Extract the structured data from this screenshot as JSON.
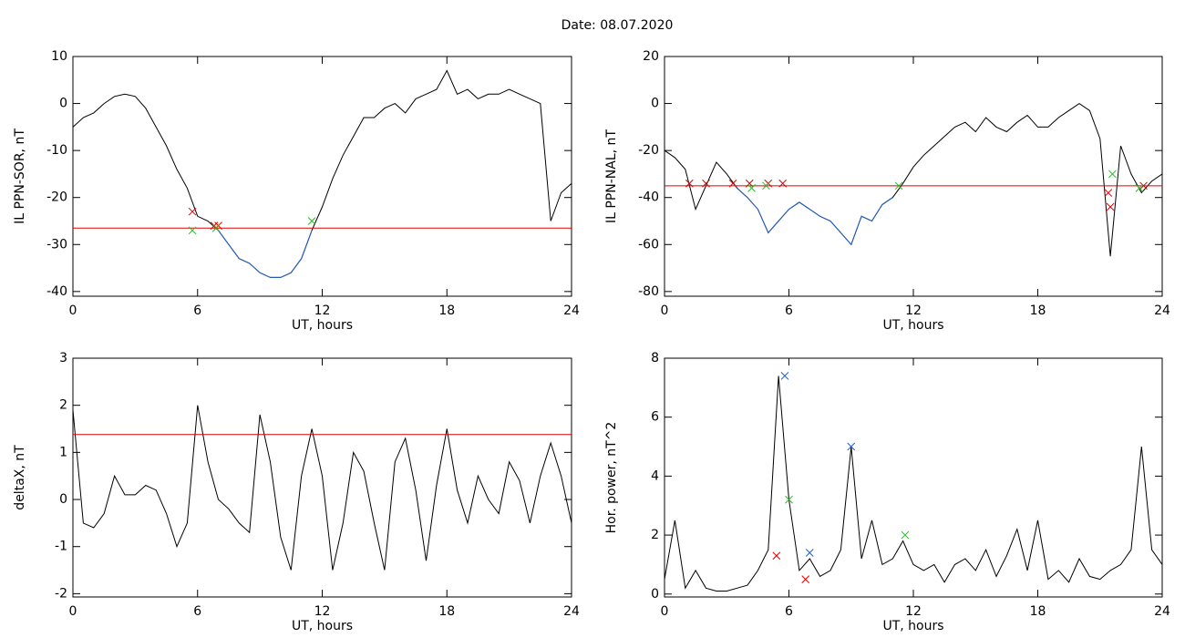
{
  "title": "Date:  08.07.2020",
  "chart_data": [
    {
      "type": "line",
      "xlabel": "UT, hours",
      "ylabel": "IL PPN-SOR, nT",
      "xlim": [
        0,
        24
      ],
      "xticks": [
        0,
        6,
        12,
        18,
        24
      ],
      "ylim": [
        -41,
        10
      ],
      "yticks": [
        -40,
        -30,
        -20,
        -10,
        0,
        10
      ],
      "x": [
        0,
        0.5,
        1,
        1.5,
        2,
        2.5,
        3,
        3.5,
        4,
        4.5,
        5,
        5.5,
        6,
        6.5,
        7,
        7.5,
        8,
        8.5,
        9,
        9.5,
        10,
        10.5,
        11,
        11.5,
        12,
        12.5,
        13,
        13.5,
        14,
        14.5,
        15,
        15.5,
        16,
        16.5,
        17,
        17.5,
        18,
        18.5,
        19,
        19.5,
        20,
        20.5,
        21,
        21.5,
        22,
        22.5,
        23,
        23.5,
        24
      ],
      "series": [
        {
          "color": "#000000",
          "values": [
            -5,
            -3,
            -2,
            0,
            1.5,
            2,
            1.5,
            -1,
            -5,
            -9,
            -14,
            -18,
            -24,
            -25,
            -27,
            -30,
            -33,
            -34,
            -36,
            -37,
            -37,
            -36,
            -33,
            -27,
            -22,
            -16,
            -11,
            -7,
            -3,
            -3,
            -1,
            0,
            -2,
            1,
            2,
            3,
            7,
            2,
            3,
            1,
            2,
            2,
            3,
            2,
            1,
            0,
            -25,
            -19,
            -17
          ]
        },
        {
          "color": "#1f5fd0",
          "values": [
            null,
            null,
            null,
            null,
            null,
            null,
            null,
            null,
            null,
            null,
            null,
            null,
            null,
            null,
            -27,
            -30,
            -33,
            -34,
            -36,
            -37,
            -37,
            -36,
            -33,
            -27,
            null,
            null,
            null,
            null,
            null,
            null,
            null,
            null,
            null,
            null,
            null,
            null,
            null,
            null,
            null,
            null,
            null,
            null,
            null,
            null,
            null,
            null,
            null,
            null,
            null
          ]
        }
      ],
      "threshold": {
        "value": -26.5,
        "color": "#e00000"
      },
      "markers": [
        {
          "color": "#e00000",
          "x": [
            5.75,
            6.8,
            7
          ],
          "values": [
            -23,
            -26,
            -26
          ]
        },
        {
          "color": "#20c020",
          "x": [
            5.75,
            6.9,
            11.5
          ],
          "values": [
            -27,
            -26.5,
            -25
          ]
        }
      ]
    },
    {
      "type": "line",
      "xlabel": "UT, hours",
      "ylabel": "IL PPN-NAL, nT",
      "xlim": [
        0,
        24
      ],
      "xticks": [
        0,
        6,
        12,
        18,
        24
      ],
      "ylim": [
        -82,
        20
      ],
      "yticks": [
        -80,
        -60,
        -40,
        -20,
        0,
        20
      ],
      "x": [
        0,
        0.5,
        1,
        1.5,
        2,
        2.5,
        3,
        3.5,
        4,
        4.5,
        5,
        5.5,
        6,
        6.5,
        7,
        7.5,
        8,
        8.5,
        9,
        9.5,
        10,
        10.5,
        11,
        11.5,
        12,
        12.5,
        13,
        13.5,
        14,
        14.5,
        15,
        15.5,
        16,
        16.5,
        17,
        17.5,
        18,
        18.5,
        19,
        19.5,
        20,
        20.5,
        21,
        21.5,
        22,
        22.5,
        23,
        23.5,
        24
      ],
      "series": [
        {
          "color": "#000000",
          "values": [
            -20,
            -23,
            -28,
            -45,
            -35,
            -25,
            -30,
            -36,
            -40,
            -45,
            -55,
            -50,
            -45,
            -42,
            -45,
            -48,
            -50,
            -55,
            -60,
            -48,
            -50,
            -43,
            -40,
            -34,
            -27,
            -22,
            -18,
            -14,
            -10,
            -8,
            -12,
            -6,
            -10,
            -12,
            -8,
            -5,
            -10,
            -10,
            -6,
            -3,
            0,
            -3,
            -15,
            -65,
            -18,
            -30,
            -38,
            -33,
            -30
          ]
        },
        {
          "color": "#1f5fd0",
          "values": [
            null,
            null,
            null,
            -45,
            null,
            null,
            null,
            -36,
            -40,
            -45,
            -55,
            -50,
            -45,
            -42,
            -45,
            -48,
            -50,
            -55,
            -60,
            -48,
            -50,
            -43,
            -40,
            null,
            null,
            null,
            null,
            null,
            null,
            null,
            null,
            null,
            null,
            null,
            null,
            null,
            null,
            null,
            null,
            null,
            null,
            null,
            null,
            -65,
            null,
            null,
            -38,
            null,
            null
          ]
        }
      ],
      "threshold": {
        "value": -35,
        "color": "#e00000"
      },
      "markers": [
        {
          "color": "#e00000",
          "x": [
            1.2,
            2,
            3.3,
            4.1,
            5,
            5.7,
            21.4,
            21.5,
            23.1
          ],
          "values": [
            -34,
            -34,
            -34,
            -34,
            -34,
            -34,
            -38,
            -44,
            -35
          ]
        },
        {
          "color": "#20c020",
          "x": [
            4.2,
            4.9,
            11.3,
            21.6,
            22.9
          ],
          "values": [
            -36,
            -35,
            -35,
            -30,
            -36
          ]
        }
      ]
    },
    {
      "type": "line",
      "xlabel": "UT, hours",
      "ylabel": "deltaX, nT",
      "xlim": [
        0,
        24
      ],
      "xticks": [
        0,
        6,
        12,
        18,
        24
      ],
      "ylim": [
        -2.07,
        3
      ],
      "yticks": [
        -2,
        -1,
        0,
        1,
        2,
        3
      ],
      "x": [
        0,
        0.5,
        1,
        1.5,
        2,
        2.5,
        3,
        3.5,
        4,
        4.5,
        5,
        5.5,
        6,
        6.5,
        7,
        7.5,
        8,
        8.5,
        9,
        9.5,
        10,
        10.5,
        11,
        11.5,
        12,
        12.5,
        13,
        13.5,
        14,
        14.5,
        15,
        15.5,
        16,
        16.5,
        17,
        17.5,
        18,
        18.5,
        19,
        19.5,
        20,
        20.5,
        21,
        21.5,
        22,
        22.5,
        23,
        23.5,
        24
      ],
      "series": [
        {
          "color": "#000000",
          "values": [
            1.9,
            -0.5,
            -0.6,
            -0.3,
            0.5,
            0.1,
            0.1,
            0.3,
            0.2,
            -0.3,
            -1,
            -0.5,
            2.0,
            0.8,
            0,
            -0.2,
            -0.5,
            -0.7,
            1.8,
            0.8,
            -0.8,
            -1.5,
            0.5,
            1.5,
            0.5,
            -1.5,
            -0.5,
            1.0,
            0.6,
            -0.5,
            -1.5,
            0.8,
            1.3,
            0.2,
            -1.3,
            0.3,
            1.5,
            0.2,
            -0.5,
            0.5,
            0,
            -0.3,
            0.8,
            0.4,
            -0.5,
            0.5,
            1.2,
            0.5,
            -0.5
          ]
        }
      ],
      "threshold": {
        "value": 1.38,
        "color": "#e00000"
      },
      "markers": []
    },
    {
      "type": "line",
      "xlabel": "UT, hours",
      "ylabel": "Hor. power, nT^2",
      "xlim": [
        0,
        24
      ],
      "xticks": [
        0,
        6,
        12,
        18,
        24
      ],
      "ylim": [
        -0.1,
        8
      ],
      "yticks": [
        0,
        2,
        4,
        6,
        8
      ],
      "x": [
        0,
        0.5,
        1,
        1.5,
        2,
        2.5,
        3,
        3.5,
        4,
        4.5,
        5,
        5.5,
        6,
        6.5,
        7,
        7.5,
        8,
        8.5,
        9,
        9.5,
        10,
        10.5,
        11,
        11.5,
        12,
        12.5,
        13,
        13.5,
        14,
        14.5,
        15,
        15.5,
        16,
        16.5,
        17,
        17.5,
        18,
        18.5,
        19,
        19.5,
        20,
        20.5,
        21,
        21.5,
        22,
        22.5,
        23,
        23.5,
        24
      ],
      "series": [
        {
          "color": "#000000",
          "values": [
            0.5,
            2.5,
            0.2,
            0.8,
            0.2,
            0.1,
            0.1,
            0.2,
            0.3,
            0.8,
            1.5,
            7.4,
            3.2,
            0.8,
            1.2,
            0.6,
            0.8,
            1.5,
            5.0,
            1.2,
            2.5,
            1.0,
            1.2,
            1.8,
            1.0,
            0.8,
            1.0,
            0.4,
            1.0,
            1.2,
            0.8,
            1.5,
            0.6,
            1.3,
            2.2,
            0.8,
            2.5,
            0.5,
            0.8,
            0.4,
            1.2,
            0.6,
            0.5,
            0.8,
            1.0,
            1.5,
            5.0,
            1.5,
            1.0
          ]
        }
      ],
      "markers": [
        {
          "color": "#1f5fd0",
          "x": [
            5.8,
            9,
            7
          ],
          "values": [
            7.4,
            5.0,
            1.4
          ]
        },
        {
          "color": "#20c020",
          "x": [
            6,
            11.6
          ],
          "values": [
            3.2,
            2.0
          ]
        },
        {
          "color": "#e00000",
          "x": [
            5.4,
            6.8
          ],
          "values": [
            1.3,
            0.5
          ]
        }
      ]
    }
  ]
}
